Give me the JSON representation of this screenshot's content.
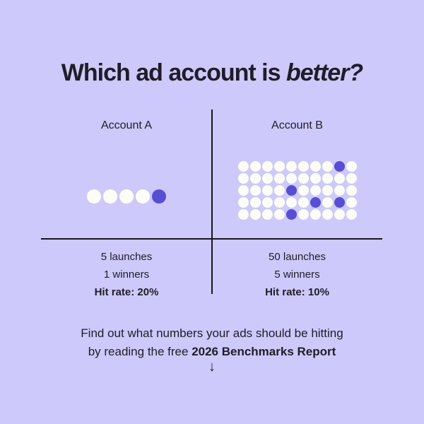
{
  "page": {
    "colors": {
      "bg": "#CDC9FA",
      "text": "#1F1D27",
      "accent": "#574ED3",
      "dot": "#FDFDF8",
      "line": "#17151F"
    }
  },
  "title": {
    "prefix": "Which ad account is ",
    "emphasis": "better?"
  },
  "comparison": {
    "left": {
      "label": "Account A",
      "stats": [
        "5 launches",
        "1 winners"
      ],
      "hit_rate": "Hit rate: 20%"
    },
    "right": {
      "label": "Account B",
      "stats": [
        "50 launches",
        "5 winners"
      ],
      "hit_rate": "Hit rate: 10%"
    }
  },
  "chart_data": [
    {
      "type": "waffle-dot",
      "name": "Account A",
      "total_dots": 5,
      "highlighted_dots": 1,
      "grid": {
        "rows": 1,
        "cols": 5
      },
      "highlight_positions": [
        [
          0,
          4
        ]
      ],
      "dot_color": "#FDFDF8",
      "highlight_color": "#574ED3",
      "launches": 5,
      "winners": 1,
      "hit_rate_pct": 20
    },
    {
      "type": "waffle-dot",
      "name": "Account B",
      "total_dots": 50,
      "highlighted_dots": 5,
      "grid": {
        "rows": 5,
        "cols": 10
      },
      "highlight_positions": [
        [
          0,
          8
        ],
        [
          2,
          4
        ],
        [
          3,
          6
        ],
        [
          3,
          8
        ],
        [
          4,
          4
        ]
      ],
      "dot_color": "#FDFDF8",
      "highlight_color": "#574ED3",
      "launches": 50,
      "winners": 5,
      "hit_rate_pct": 10
    }
  ],
  "footer": {
    "line1": "Find out what numbers your ads should be hitting",
    "line2_prefix": "by reading the free ",
    "line2_bold": "2026 Benchmarks Report",
    "arrow": "↓"
  }
}
